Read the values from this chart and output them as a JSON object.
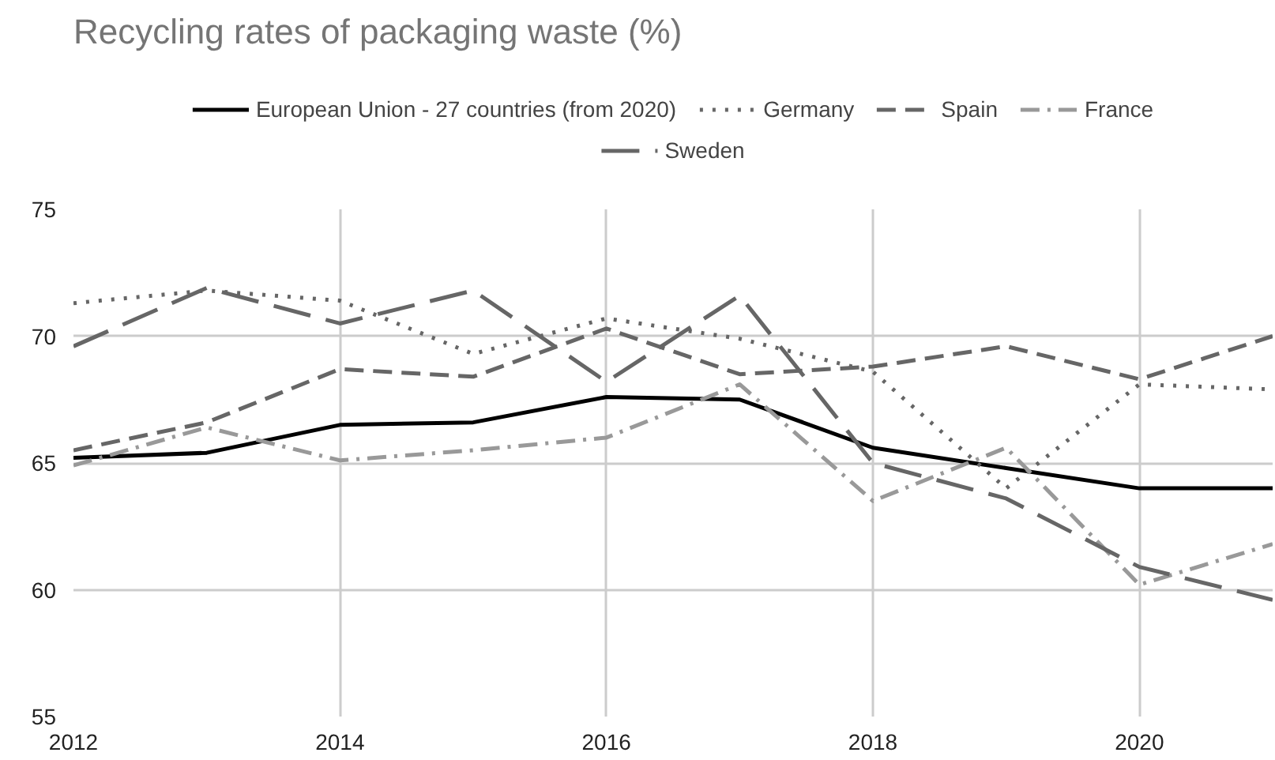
{
  "chart_data": {
    "type": "line",
    "title": "Recycling rates of packaging waste (%)",
    "x": [
      2012,
      2013,
      2014,
      2015,
      2016,
      2017,
      2018,
      2019,
      2020,
      2021
    ],
    "xlim": [
      2012,
      2021
    ],
    "xticks": [
      2012,
      2014,
      2016,
      2018,
      2020
    ],
    "ylim": [
      55,
      75
    ],
    "yticks": [
      55,
      60,
      65,
      70,
      75
    ],
    "grid": true,
    "legend": "top",
    "marker": "none",
    "series": [
      {
        "name": "European Union - 27 countries (from 2020)",
        "color": "#000000",
        "line_style": "solid",
        "values": [
          65.2,
          65.4,
          66.5,
          66.6,
          67.6,
          67.5,
          65.6,
          64.8,
          64.0,
          64.0
        ]
      },
      {
        "name": "Germany",
        "color": "#666666",
        "line_style": "dotted",
        "values": [
          71.3,
          71.8,
          71.4,
          69.3,
          70.7,
          69.9,
          68.6,
          64.0,
          68.1,
          67.9
        ]
      },
      {
        "name": "Spain",
        "color": "#666666",
        "line_style": "dashed",
        "values": [
          65.5,
          66.6,
          68.7,
          68.4,
          70.3,
          68.5,
          68.8,
          69.6,
          68.3,
          70.0
        ]
      },
      {
        "name": "France",
        "color": "#999999",
        "line_style": "dashdot",
        "values": [
          64.9,
          66.4,
          65.1,
          65.5,
          66.0,
          68.1,
          63.5,
          65.6,
          60.2,
          61.8
        ]
      },
      {
        "name": "Sweden",
        "color": "#666666",
        "line_style": "longdash",
        "values": [
          69.6,
          71.9,
          70.5,
          71.8,
          68.2,
          71.6,
          65.0,
          63.6,
          60.9,
          59.6
        ]
      }
    ]
  }
}
